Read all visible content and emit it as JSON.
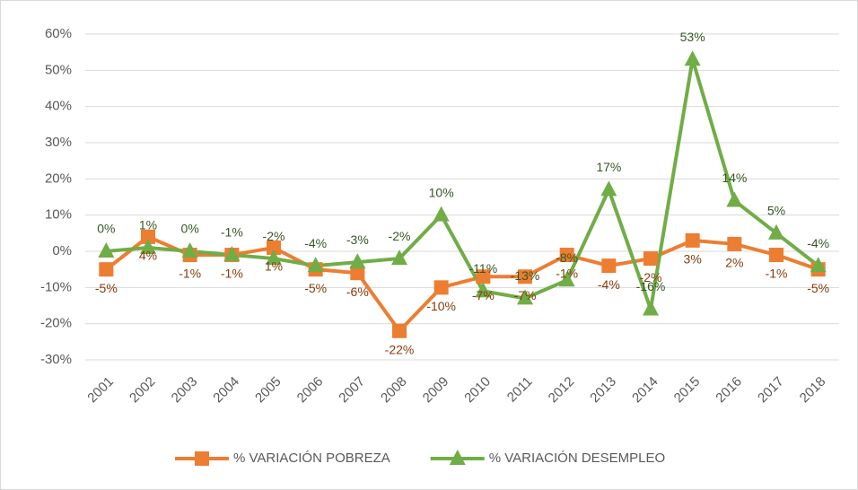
{
  "chart_data": {
    "type": "line",
    "categories": [
      "2001",
      "2002",
      "2003",
      "2004",
      "2005",
      "2006",
      "2007",
      "2008",
      "2009",
      "2010",
      "2011",
      "2012",
      "2013",
      "2014",
      "2015",
      "2016",
      "2017",
      "2018"
    ],
    "series": [
      {
        "name": "% VARIACIÓN POBREZA",
        "color": "#ed7d31",
        "marker": "square",
        "label_color": "#843c0c",
        "label_position": "below",
        "values": [
          -5,
          4,
          -1,
          -1,
          1,
          -5,
          -6,
          -22,
          -10,
          -7,
          -7,
          -1,
          -4,
          -2,
          3,
          2,
          -1,
          -5
        ],
        "value_labels": [
          "-5%",
          "4%",
          "-1%",
          "-1%",
          "1%",
          "-5%",
          "-6%",
          "-22%",
          "-10%",
          "-7%",
          "-7%",
          "-1%",
          "-4%",
          "-2%",
          "3%",
          "2%",
          "-1%",
          "-5%"
        ]
      },
      {
        "name": "% VARIACIÓN DESEMPLEO",
        "color": "#70ad47",
        "marker": "triangle",
        "label_color": "#375623",
        "label_position": "above",
        "values": [
          0,
          1,
          0,
          -1,
          -2,
          -4,
          -3,
          -2,
          10,
          -11,
          -13,
          -8,
          17,
          -16,
          53,
          14,
          5,
          -4
        ],
        "value_labels": [
          "0%",
          "1%",
          "0%",
          "-1%",
          "-2%",
          "-4%",
          "-3%",
          "-2%",
          "10%",
          "-11%",
          "-13%",
          "-8%",
          "17%",
          "-16%",
          "53%",
          "14%",
          "5%",
          "-4%"
        ]
      }
    ],
    "ylim": [
      -30,
      60
    ],
    "yticks": [
      {
        "value": -30,
        "label": "-30%"
      },
      {
        "value": -20,
        "label": "-20%"
      },
      {
        "value": -10,
        "label": "-10%"
      },
      {
        "value": 0,
        "label": "0%"
      },
      {
        "value": 10,
        "label": "10%"
      },
      {
        "value": 20,
        "label": "20%"
      },
      {
        "value": 30,
        "label": "30%"
      },
      {
        "value": 40,
        "label": "40%"
      },
      {
        "value": 50,
        "label": "50%"
      },
      {
        "value": 60,
        "label": "60%"
      }
    ],
    "grid": true,
    "legend": "bottom"
  }
}
